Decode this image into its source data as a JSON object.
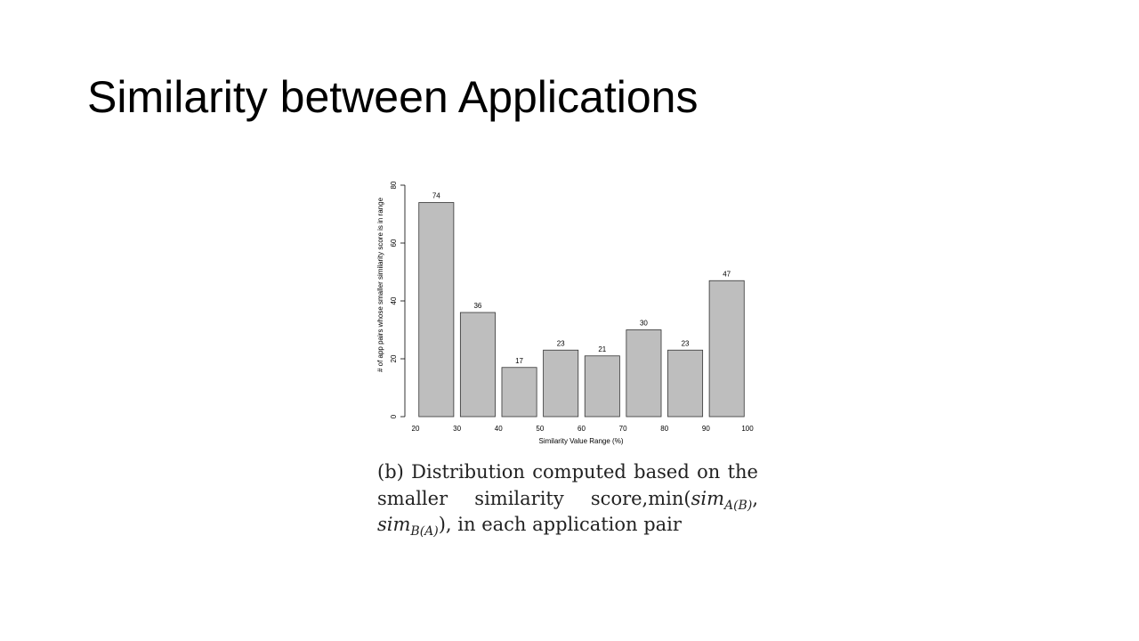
{
  "title": "Similarity between Applications",
  "chart_data": {
    "type": "histogram",
    "bins": [
      20,
      30,
      40,
      50,
      60,
      70,
      80,
      90,
      100
    ],
    "values": [
      74,
      36,
      17,
      23,
      21,
      30,
      23,
      47
    ],
    "color": "#bebebe",
    "xlim": [
      20,
      100
    ],
    "xticks": [
      20,
      30,
      40,
      50,
      60,
      70,
      80,
      90,
      100
    ],
    "ylim": [
      0,
      80
    ],
    "yticks": [
      0,
      20,
      40,
      60,
      80
    ],
    "xlabel": "Similarity Value Range (%)",
    "ylabel": "# of app pairs whose smaller similarity score is in range",
    "caption": [
      "(b) Distribution computed based on the smaller similarity score,min(",
      "sim",
      "A(B)",
      ", ",
      "sim",
      "B(A)",
      "), in each application pair"
    ]
  }
}
